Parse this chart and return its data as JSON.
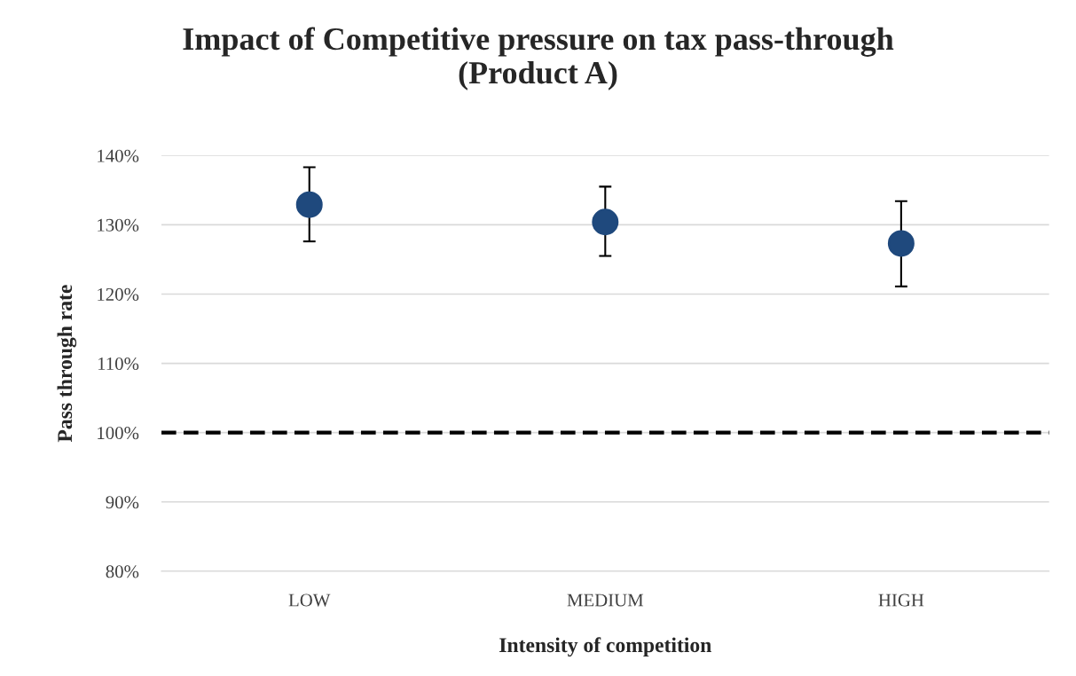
{
  "chart_data": {
    "type": "scatter",
    "title": "Impact of Competitive pressure on tax pass-through\n(Product A)",
    "xlabel": "Intensity of competition",
    "ylabel": "Pass through rate",
    "categories": [
      "LOW",
      "MEDIUM",
      "HIGH"
    ],
    "series": [
      {
        "color": "#1f497d",
        "values": [
          132.9,
          130.4,
          127.3
        ],
        "errors": [
          [
            127.6,
            138.3
          ],
          [
            125.5,
            135.5
          ],
          [
            121.1,
            133.4
          ]
        ]
      }
    ],
    "ylim": [
      80,
      140
    ],
    "yticks": [
      {
        "value": 80,
        "label": "80%"
      },
      {
        "value": 90,
        "label": "90%"
      },
      {
        "value": 100,
        "label": "100%"
      },
      {
        "value": 110,
        "label": "110%"
      },
      {
        "value": 120,
        "label": "120%"
      },
      {
        "value": 130,
        "label": "130%"
      },
      {
        "value": 140,
        "label": "140%"
      }
    ],
    "grid": "y",
    "marker": "circle",
    "legend": false,
    "ref_lines": [
      {
        "axis": "y",
        "value": 100,
        "color": "#000000",
        "line_style": "dashed"
      }
    ]
  }
}
